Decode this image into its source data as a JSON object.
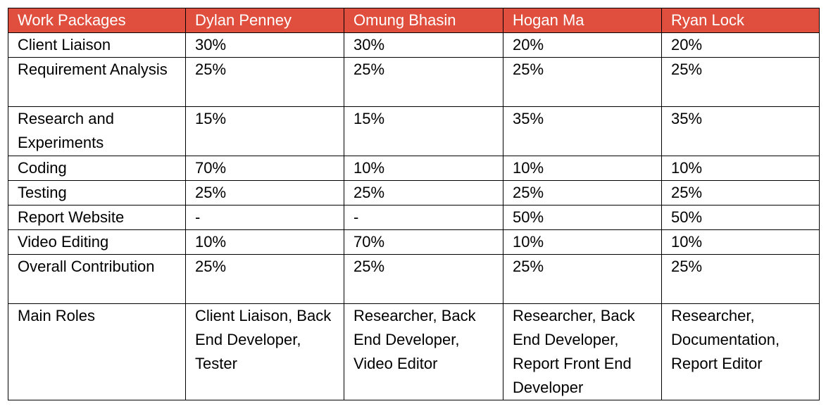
{
  "accent_color": "#e04e3e",
  "table": {
    "headers": [
      "Work Packages",
      "Dylan Penney",
      "Omung Bhasin",
      "Hogan Ma",
      "Ryan Lock"
    ],
    "rows": [
      [
        "Client Liaison",
        "30%",
        "30%",
        "20%",
        "20%"
      ],
      [
        "Requirement Analysis",
        "25%",
        "25%",
        "25%",
        "25%"
      ],
      [
        "Research and Experiments",
        "15%",
        "15%",
        "35%",
        "35%"
      ],
      [
        "Coding",
        "70%",
        "10%",
        "10%",
        "10%"
      ],
      [
        "Testing",
        "25%",
        "25%",
        "25%",
        "25%"
      ],
      [
        "Report Website",
        "-",
        "-",
        "50%",
        "50%"
      ],
      [
        "Video Editing",
        "10%",
        "70%",
        "10%",
        "10%"
      ],
      [
        "Overall Contribution",
        "25%",
        "25%",
        "25%",
        "25%"
      ],
      [
        "Main Roles",
        "Client Liaison, Back End Developer, Tester",
        "Researcher, Back End Developer, Video Editor",
        "Researcher, Back End Developer, Report Front End Developer",
        "Researcher, Documentation, Report Editor"
      ]
    ]
  }
}
